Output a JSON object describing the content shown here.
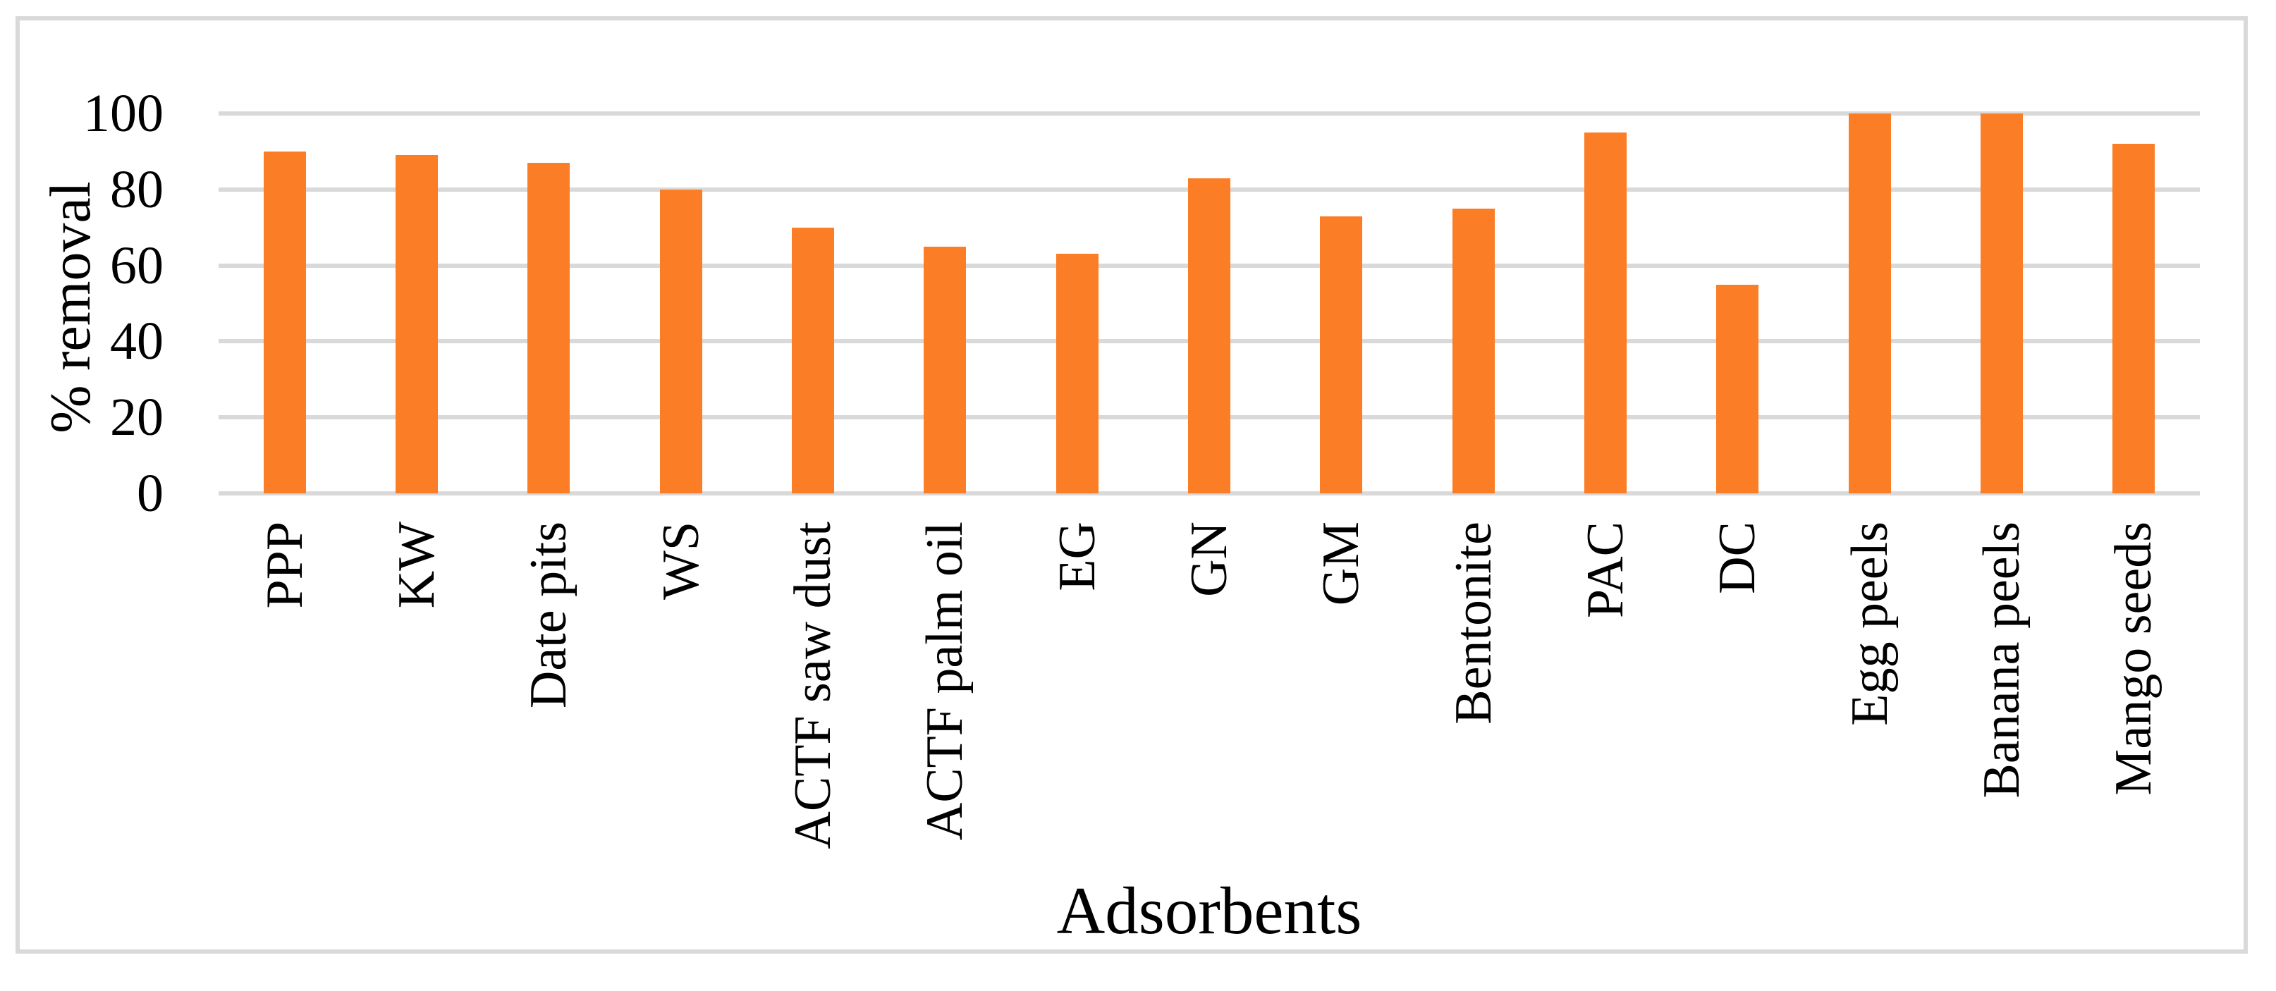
{
  "figure": {
    "background": "#ffffff",
    "frame_color": "#D9D9D9",
    "gridline_color": "#D9D9D9",
    "bar_color": "#FB7D26",
    "text_color": "#000000"
  },
  "chart_data": {
    "type": "bar",
    "title": "",
    "xlabel": "Adsorbents",
    "ylabel": "% removal",
    "categories": [
      "PPP",
      "KW",
      "Date pits",
      "WS",
      "ACTF saw dust",
      "ACTF palm oil",
      "EG",
      "GN",
      "GM",
      "Bentonite",
      "PAC",
      "DC",
      "Egg peels",
      "Banana peels",
      "Mango seeds"
    ],
    "values": [
      90,
      89,
      87,
      80,
      70,
      65,
      63,
      83,
      73,
      75,
      95,
      55,
      100,
      100,
      92
    ],
    "ylim": [
      0,
      100
    ],
    "yticks": [
      0,
      20,
      40,
      60,
      80,
      100
    ],
    "grid": true,
    "legend_position": "none",
    "x_tick_rotation_degrees": 90
  }
}
